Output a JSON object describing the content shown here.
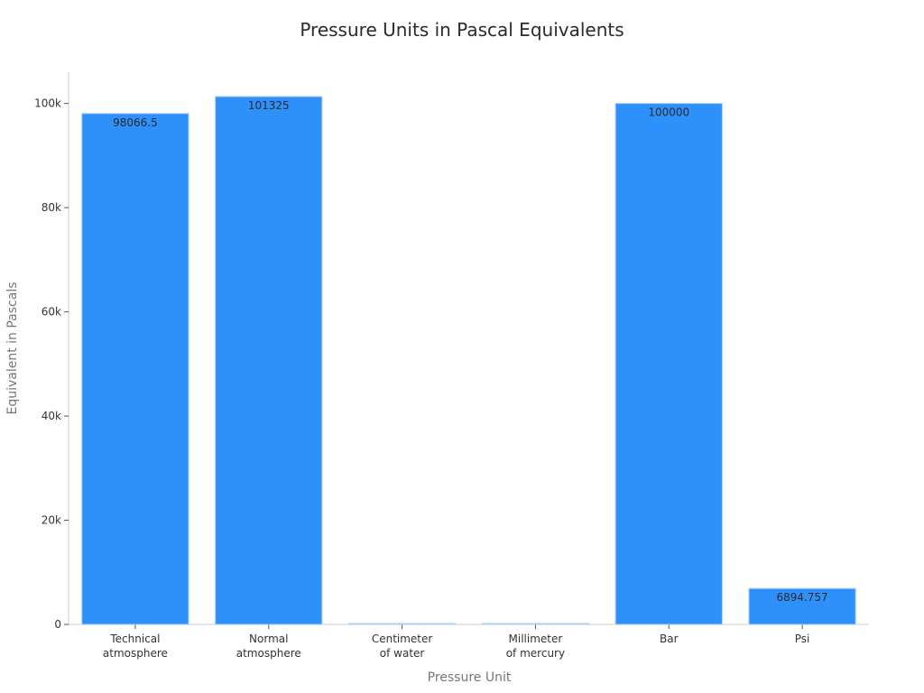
{
  "chart_data": {
    "type": "bar",
    "title": "Pressure Units in Pascal Equivalents",
    "xlabel": "Pressure Unit",
    "ylabel": "Equivalent in Pascals",
    "categories": [
      [
        "Technical",
        "atmosphere"
      ],
      [
        "Normal",
        "atmosphere"
      ],
      [
        "Centimeter",
        "of water"
      ],
      [
        "Millimeter",
        "of mercury"
      ],
      [
        "Bar"
      ],
      [
        "Psi"
      ]
    ],
    "values": [
      98066.5,
      101325,
      98.0665,
      133.322,
      100000,
      6894.757
    ],
    "data_labels": [
      "98066.5",
      "101325",
      "",
      "",
      "100000",
      "6894.757"
    ],
    "ylim": [
      0,
      106000
    ],
    "yticks": [
      0,
      20000,
      40000,
      60000,
      80000,
      100000
    ],
    "ytick_labels": [
      "0",
      "20k",
      "40k",
      "60k",
      "80k",
      "100k"
    ],
    "grid": false,
    "colors": {
      "bar": "#2e90fa",
      "bar_edge": "#a9cff5",
      "axis": "#cccccc",
      "tick": "#555555"
    }
  }
}
